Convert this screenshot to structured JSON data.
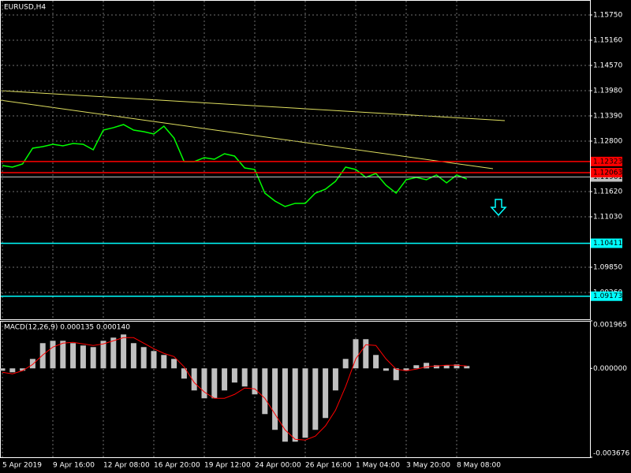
{
  "chart_data": [
    {
      "type": "line",
      "title": "EURUSD,H4",
      "color": "#00ff00",
      "grid": true,
      "categories": [
        "5 Apr 2019",
        null,
        null,
        null,
        null,
        "9 Apr 16:00",
        null,
        null,
        null,
        null,
        "12 Apr 08:00",
        null,
        null,
        null,
        null,
        "16 Apr 20:00",
        null,
        null,
        null,
        null,
        "19 Apr 12:00",
        null,
        null,
        null,
        null,
        "24 Apr 00:00",
        null,
        null,
        null,
        null,
        "26 Apr 16:00",
        null,
        null,
        null,
        null,
        "1 May 04:00",
        null,
        null,
        null,
        null,
        "3 May 20:00",
        null,
        null,
        null,
        null,
        "8 May 08:00",
        null
      ],
      "values": [
        1.12229,
        1.12192,
        1.12265,
        1.12634,
        1.12671,
        1.12726,
        1.1269,
        1.12745,
        1.12726,
        1.12597,
        1.13058,
        1.13114,
        1.13187,
        1.13058,
        1.13021,
        1.12966,
        1.1315,
        1.12874,
        1.12321,
        1.12321,
        1.12413,
        1.12376,
        1.12505,
        1.1245,
        1.12173,
        1.12136,
        1.11583,
        1.11399,
        1.1127,
        1.11344,
        1.11344,
        1.11583,
        1.11675,
        1.1186,
        1.12192,
        1.12136,
        1.11952,
        1.12044,
        1.11768,
        1.11583,
        1.11897,
        1.11952,
        1.11897,
        1.12007,
        1.11823,
        1.12007,
        1.11915
      ],
      "ylim": [
        1.08633,
        1.161
      ],
      "yticks": [
        {
          "value": 1.1575,
          "label": "1.15750"
        },
        {
          "value": 1.1516,
          "label": "1.15160"
        },
        {
          "value": 1.1457,
          "label": "1.14570"
        },
        {
          "value": 1.1398,
          "label": "1.13980"
        },
        {
          "value": 1.1339,
          "label": "1.13390"
        },
        {
          "value": 1.128,
          "label": "1.12800"
        },
        {
          "value": 1.1162,
          "label": "1.11620"
        },
        {
          "value": 1.1103,
          "label": "1.11030"
        },
        {
          "value": 1.0985,
          "label": "1.09850"
        },
        {
          "value": 1.0926,
          "label": "1.09260"
        }
      ],
      "levels": [
        {
          "value": 1.12323,
          "label": "1.12323",
          "color": "#ff0000"
        },
        {
          "value": 1.12063,
          "label": "1.12063",
          "color": "#ff0000"
        },
        {
          "value": 1.10411,
          "label": "1.10411",
          "color": "#00ffff"
        },
        {
          "value": 1.09173,
          "label": "1.09173",
          "color": "#00ffff"
        }
      ],
      "last_price": {
        "value": 1.11961,
        "label": "1.11961",
        "color": "#c0c0c0"
      }
    },
    {
      "type": "macd",
      "title": "MACD(12,26,9) 0.000135 0.000140",
      "ylim": [
        -0.003676,
        0.001965
      ],
      "yticks": [
        0.001965,
        {
          "value": 0,
          "label": "0.000000"
        },
        -0.003676
      ],
      "series": [
        {
          "type": "histogram",
          "color": "#c0c0c0",
          "values": [
            -9.8e-05,
            -0.000163,
            -9.8e-05,
            0.000391,
            0.001043,
            0.001141,
            0.001141,
            0.001043,
            0.000946,
            0.00088,
            0.001141,
            0.001272,
            0.001402,
            0.001043,
            0.00088,
            0.000717,
            0.000554,
            0.000391,
            -0.000424,
            -0.000913,
            -0.001239,
            -0.001239,
            -0.000913,
            -0.000587,
            -0.00075,
            -0.001076,
            -0.001891,
            -0.002543,
            -0.003033,
            -0.003033,
            -0.00287,
            -0.002543,
            -0.002054,
            -0.000913,
            0.000391,
            0.001207,
            0.001207,
            0.000554,
            -9.8e-05,
            -0.000489,
            -9.8e-05,
            0.00013,
            0.000228,
            0.00013,
            0.00013,
            0.000163,
            9.8e-05
          ]
        },
        {
          "type": "line",
          "color": "#ff0000",
          "values": [
            -0.000163,
            -0.000228,
            -9.8e-05,
            0.000163,
            0.000554,
            0.00088,
            0.001043,
            0.001076,
            0.001011,
            0.000946,
            0.001011,
            0.001141,
            0.001272,
            0.001272,
            0.001043,
            0.000815,
            0.00062,
            0.000489,
            6.5e-05,
            -0.000587,
            -0.000978,
            -0.001239,
            -0.001239,
            -0.001076,
            -0.000815,
            -0.000848,
            -0.001239,
            -0.001891,
            -0.002543,
            -0.002935,
            -0.002967,
            -0.002804,
            -0.00238,
            -0.001728,
            -0.00075,
            0.000391,
            0.000978,
            0.000946,
            0.000391,
            -3.3e-05,
            -9.8e-05,
            -3.3e-05,
            6.5e-05,
            9.8e-05,
            0.00013,
            0.00013,
            9.8e-05
          ]
        }
      ]
    }
  ]
}
